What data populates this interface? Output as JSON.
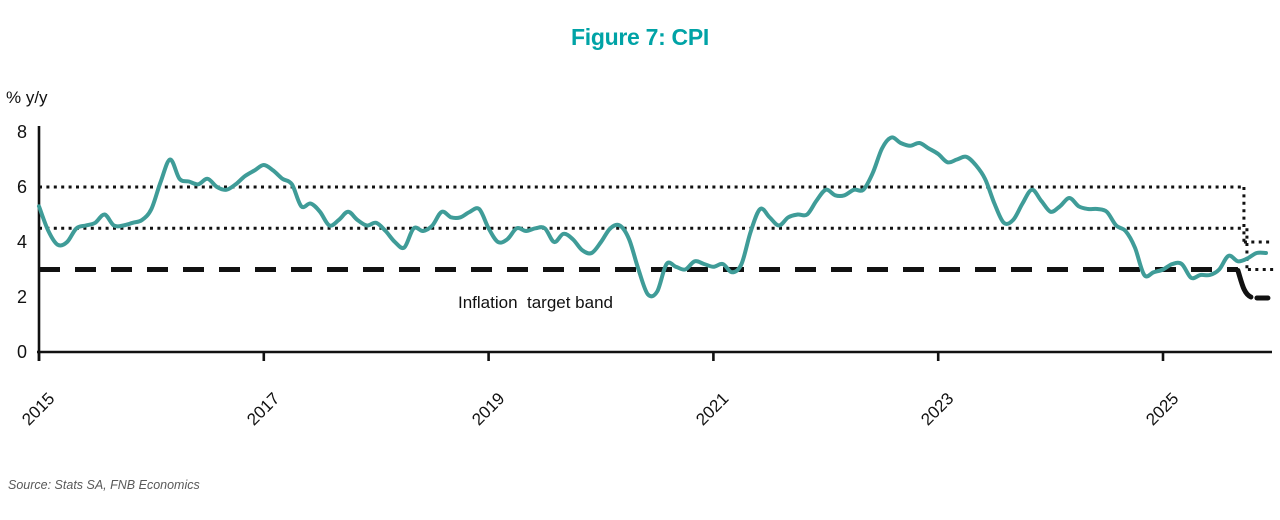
{
  "source": "Source: Stats SA, FNB Economics",
  "colors": {
    "accent": "#00a3a6",
    "line": "#3f9c98",
    "text": "#111111",
    "muted": "#595959",
    "band": "#111111"
  },
  "chart_data": {
    "type": "line",
    "title": "Figure 7: CPI",
    "ylabel": "% y/y",
    "xlabel": "",
    "ylim": [
      0,
      8
    ],
    "yticks": [
      0,
      2,
      4,
      6,
      8
    ],
    "xticks": [
      "2015",
      "2017",
      "2019",
      "2021",
      "2023",
      "2025"
    ],
    "grid": false,
    "legend": "none",
    "annotations": [
      {
        "text": "Inflation  target band",
        "near_value": 2.5,
        "near_year": 2019
      }
    ],
    "target_band": {
      "old": {
        "upper": 6,
        "midpoint": 4.5,
        "lower": 3,
        "from_year": 2015.0,
        "to_year": 2025.72
      },
      "new": {
        "upper": 4,
        "midpoint": 3,
        "lower": 2,
        "from_year": 2025.72,
        "to_year": 2025.97
      },
      "style_note": "upper and midpoint dotted, lower thick dashed"
    },
    "series": [
      {
        "name": "CPI % y/y",
        "color": "#3f9c98",
        "frequency": "monthly",
        "start": "2014-12",
        "end": "2025-11",
        "values": [
          5.3,
          4.4,
          3.9,
          4.0,
          4.5,
          4.6,
          4.7,
          5.0,
          4.6,
          4.6,
          4.7,
          4.8,
          5.2,
          6.2,
          7.0,
          6.3,
          6.2,
          6.1,
          6.3,
          6.0,
          5.9,
          6.1,
          6.4,
          6.6,
          6.8,
          6.6,
          6.3,
          6.1,
          5.3,
          5.4,
          5.1,
          4.6,
          4.8,
          5.1,
          4.8,
          4.6,
          4.7,
          4.4,
          4.0,
          3.8,
          4.5,
          4.4,
          4.6,
          5.1,
          4.9,
          4.9,
          5.1,
          5.2,
          4.5,
          4.0,
          4.1,
          4.5,
          4.4,
          4.5,
          4.5,
          4.0,
          4.3,
          4.1,
          3.7,
          3.6,
          4.0,
          4.5,
          4.6,
          4.1,
          3.0,
          2.1,
          2.2,
          3.2,
          3.1,
          3.0,
          3.3,
          3.2,
          3.1,
          3.2,
          2.9,
          3.2,
          4.4,
          5.2,
          4.9,
          4.6,
          4.9,
          5.0,
          5.0,
          5.5,
          5.9,
          5.7,
          5.7,
          5.9,
          5.9,
          6.5,
          7.4,
          7.8,
          7.6,
          7.5,
          7.6,
          7.4,
          7.2,
          6.9,
          7.0,
          7.1,
          6.8,
          6.3,
          5.4,
          4.7,
          4.8,
          5.4,
          5.9,
          5.5,
          5.1,
          5.3,
          5.6,
          5.3,
          5.2,
          5.2,
          5.1,
          4.6,
          4.4,
          3.8,
          2.8,
          2.9,
          3.0,
          3.2,
          3.2,
          2.7,
          2.8,
          2.8,
          3.0,
          3.5,
          3.3,
          3.4,
          3.6,
          3.6
        ]
      }
    ]
  }
}
